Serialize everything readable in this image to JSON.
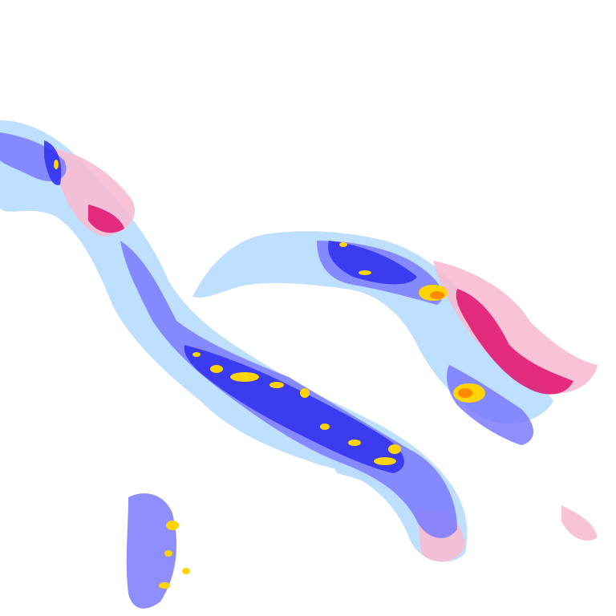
{
  "map": {
    "type": "precipitation-radar-tile",
    "background": "#ffffff",
    "colors": {
      "light_rain": "#b8dcff",
      "moderate_rain": "#7a7aff",
      "heavy_rain": "#3333ee",
      "very_heavy_rain": "#ffd500",
      "intense": "#ff8a00",
      "extreme": "#e83030",
      "mixed_light": "#f7bcd2",
      "snow_heavy": "#e0106e"
    }
  }
}
